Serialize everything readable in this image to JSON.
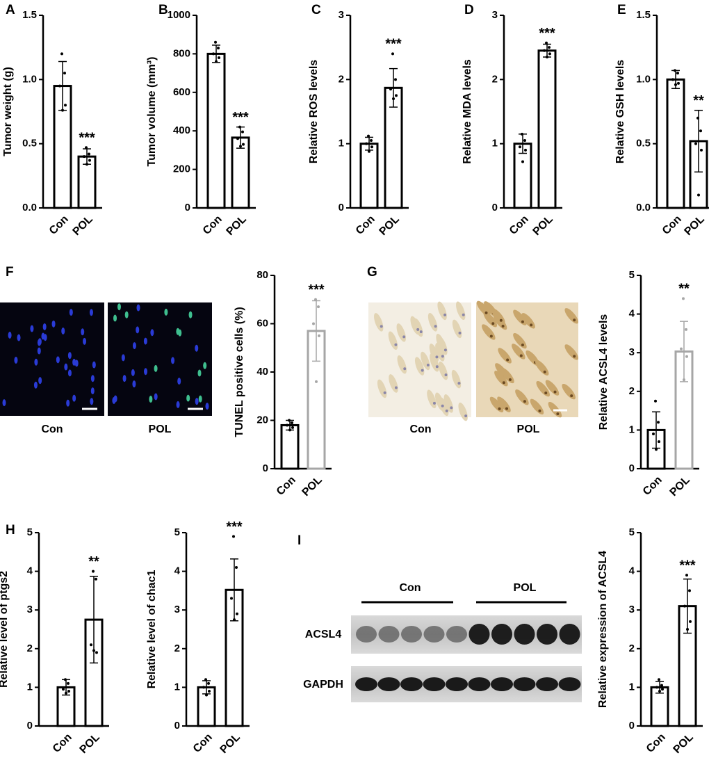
{
  "chart_data": [
    {
      "type": "bar",
      "panel": "A",
      "ylabel": "Tumor weight (g)",
      "categories": [
        "Con",
        "POL"
      ],
      "values": [
        0.95,
        0.4
      ],
      "errors": [
        0.19,
        0.06
      ],
      "points": [
        [
          1.2,
          1.05,
          0.95,
          0.8,
          0.76
        ],
        [
          0.47,
          0.42,
          0.4,
          0.37,
          0.34
        ]
      ],
      "colors": [
        "#000000",
        "#000000"
      ],
      "annotation": "***",
      "ylim": [
        0,
        1.5
      ],
      "yticks": [
        {
          "value": 0,
          "label": "0.0"
        },
        0.5,
        {
          "value": 1,
          "label": "1.0"
        },
        1.5
      ]
    },
    {
      "type": "bar",
      "panel": "B",
      "ylabel": "Tumor volume (mm³)",
      "categories": [
        "Con",
        "POL"
      ],
      "values": [
        800,
        365
      ],
      "errors": [
        45,
        55
      ],
      "points": [
        [
          860,
          830,
          800,
          780,
          760
        ],
        [
          420,
          395,
          360,
          330,
          320
        ]
      ],
      "colors": [
        "#000000",
        "#000000"
      ],
      "annotation": "***",
      "ylim": [
        0,
        1000
      ],
      "yticks": [
        0,
        200,
        400,
        600,
        800,
        1000
      ]
    },
    {
      "type": "bar",
      "panel": "C",
      "ylabel": "Relative ROS levels",
      "categories": [
        "Con",
        "POL"
      ],
      "values": [
        1.0,
        1.87
      ],
      "errors": [
        0.1,
        0.3
      ],
      "points": [
        [
          1.12,
          1.05,
          1.0,
          0.95,
          0.88
        ],
        [
          2.4,
          2.0,
          1.85,
          1.75,
          1.7
        ]
      ],
      "colors": [
        "#000000",
        "#000000"
      ],
      "annotation": "***",
      "ylim": [
        0,
        3
      ],
      "yticks": [
        0,
        1,
        2,
        3
      ]
    },
    {
      "type": "bar",
      "panel": "D",
      "ylabel": "Relative MDA levels",
      "categories": [
        "Con",
        "POL"
      ],
      "values": [
        1.0,
        2.45
      ],
      "errors": [
        0.15,
        0.1
      ],
      "points": [
        [
          1.15,
          1.05,
          0.95,
          0.9,
          0.72
        ],
        [
          2.57,
          2.5,
          2.45,
          2.4,
          2.35
        ]
      ],
      "colors": [
        "#000000",
        "#000000"
      ],
      "annotation": "***",
      "ylim": [
        0,
        3
      ],
      "yticks": [
        0,
        1,
        2,
        3
      ]
    },
    {
      "type": "bar",
      "panel": "E",
      "ylabel": "Relative GSH levels",
      "categories": [
        "Con",
        "POL"
      ],
      "values": [
        1.0,
        0.52
      ],
      "errors": [
        0.07,
        0.24
      ],
      "points": [
        [
          1.07,
          1.05,
          1.0,
          0.97,
          0.96
        ],
        [
          0.7,
          0.6,
          0.5,
          0.45,
          0.1
        ]
      ],
      "colors": [
        "#000000",
        "#000000"
      ],
      "annotation": "**",
      "ylim": [
        0,
        1.5
      ],
      "yticks": [
        {
          "value": 0,
          "label": "0.0"
        },
        0.5,
        {
          "value": 1,
          "label": "1.0"
        },
        1.5
      ]
    },
    {
      "type": "bar",
      "panel": "F",
      "ylabel": "TUNEL positive cells (%)",
      "categories": [
        "Con",
        "POL"
      ],
      "values": [
        18,
        57
      ],
      "errors": [
        2,
        12.5
      ],
      "points": [
        [
          20,
          19,
          18,
          17,
          16
        ],
        [
          70,
          67,
          60,
          55,
          36
        ]
      ],
      "colors": [
        "#000000",
        "#a6a6a6"
      ],
      "annotation": "***",
      "ylim": [
        0,
        80
      ],
      "yticks": [
        0,
        20,
        40,
        60,
        80
      ]
    },
    {
      "type": "bar",
      "panel": "G",
      "ylabel": "Relative ACSL4 levels",
      "categories": [
        "Con",
        "POL"
      ],
      "values": [
        1.0,
        3.03
      ],
      "errors": [
        0.47,
        0.78
      ],
      "points": [
        [
          1.75,
          1.2,
          0.9,
          0.7,
          0.5
        ],
        [
          4.4,
          3.6,
          3.1,
          2.9,
          2.3
        ]
      ],
      "colors": [
        "#000000",
        "#a6a6a6"
      ],
      "annotation": "**",
      "ylim": [
        0,
        5
      ],
      "yticks": [
        0,
        1,
        2,
        3,
        4,
        5
      ]
    },
    {
      "type": "bar",
      "panel": "H",
      "ylabel": "Relative level of ptgs2",
      "categories": [
        "Con",
        "POL"
      ],
      "values": [
        1.0,
        2.75
      ],
      "errors": [
        0.2,
        1.12
      ],
      "points": [
        [
          1.2,
          1.1,
          0.95,
          0.9,
          0.85
        ],
        [
          4.0,
          3.8,
          2.1,
          1.9,
          1.95
        ]
      ],
      "colors": [
        "#000000",
        "#000000"
      ],
      "annotation": "**",
      "ylim": [
        0,
        5
      ],
      "yticks": [
        0,
        1,
        2,
        3,
        4,
        5
      ]
    },
    {
      "type": "bar",
      "ylabel": "Relative level of chac1",
      "categories": [
        "Con",
        "POL"
      ],
      "values": [
        1.0,
        3.52
      ],
      "errors": [
        0.17,
        0.8
      ],
      "points": [
        [
          1.2,
          1.1,
          1.0,
          0.9,
          0.8
        ],
        [
          4.9,
          4.1,
          3.3,
          2.9,
          2.75
        ]
      ],
      "colors": [
        "#000000",
        "#000000"
      ],
      "annotation": "***",
      "ylim": [
        0,
        5
      ],
      "yticks": [
        0,
        1,
        2,
        3,
        4,
        5
      ]
    },
    {
      "type": "bar",
      "ylabel": "Relative expression of ACSL4",
      "categories": [
        "Con",
        "POL"
      ],
      "values": [
        1.0,
        3.1
      ],
      "errors": [
        0.15,
        0.7
      ],
      "points": [
        [
          1.2,
          1.05,
          1.0,
          0.95,
          0.9
        ],
        [
          3.9,
          3.5,
          3.1,
          2.7,
          2.5
        ]
      ],
      "colors": [
        "#000000",
        "#000000"
      ],
      "annotation": "***",
      "ylim": [
        0,
        5
      ],
      "yticks": [
        0,
        1,
        2,
        3,
        4,
        5
      ]
    }
  ],
  "images": {
    "F": [
      "Con",
      "POL"
    ],
    "G": [
      "Con",
      "POL"
    ],
    "I": {
      "panel": "I",
      "groups": [
        "Con",
        "POL"
      ],
      "rows": [
        "ACSL4",
        "GAPDH"
      ]
    }
  }
}
